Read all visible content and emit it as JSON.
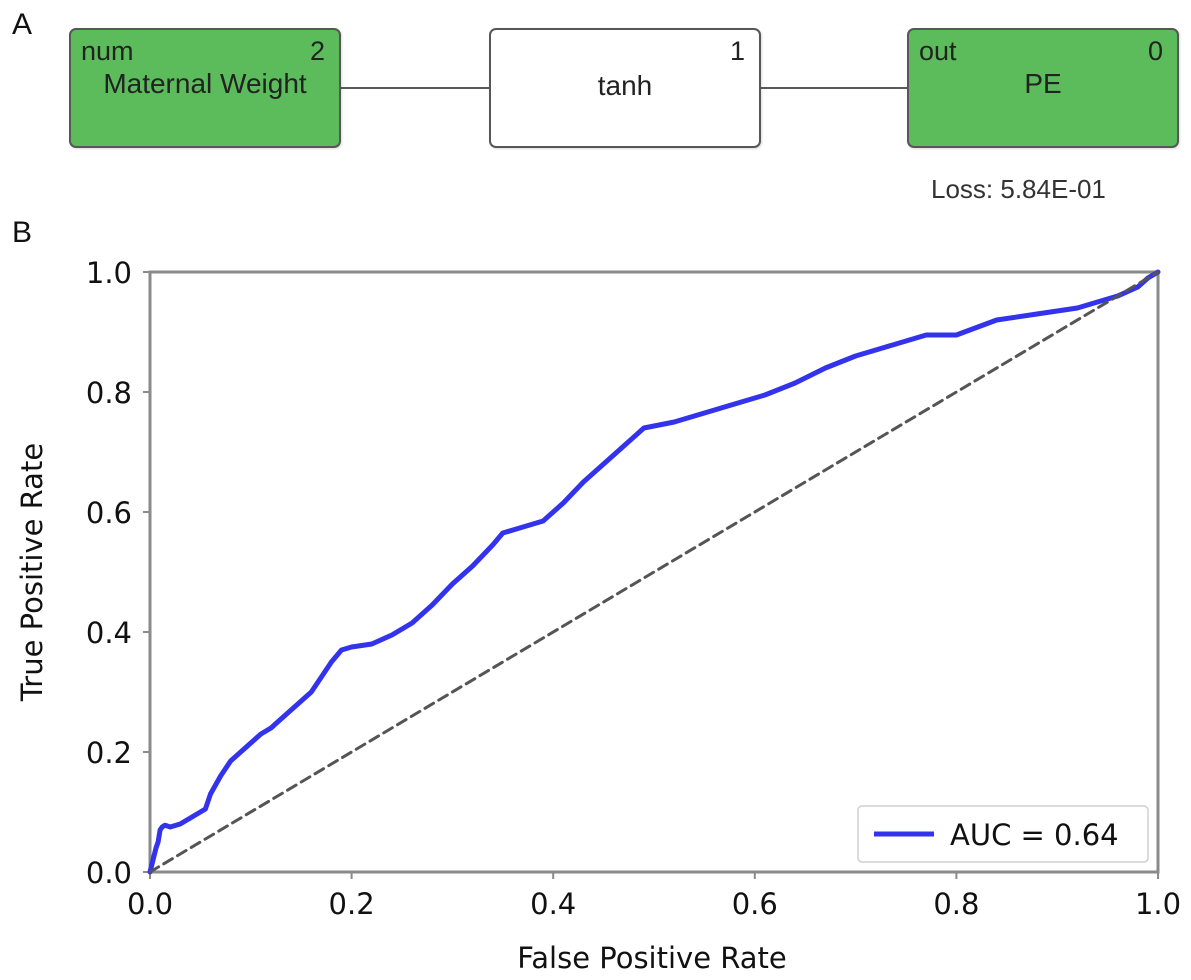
{
  "panels": {
    "a_label": "A",
    "b_label": "B"
  },
  "network": {
    "input_node": {
      "type": "num",
      "index": "2",
      "name": "Maternal Weight",
      "color": "#5cbc5c"
    },
    "hidden_node": {
      "index": "1",
      "name": "tanh"
    },
    "output_node": {
      "type": "out",
      "index": "0",
      "name": "PE",
      "color": "#5cbc5c"
    },
    "loss_text": "Loss: 5.84E-01"
  },
  "chart_data": {
    "type": "line",
    "xlabel": "False Positive Rate",
    "ylabel": "True Positive Rate",
    "xlim": [
      0.0,
      1.0
    ],
    "ylim": [
      0.0,
      1.0
    ],
    "xticks": [
      "0.0",
      "0.2",
      "0.4",
      "0.6",
      "0.8",
      "1.0"
    ],
    "yticks": [
      "0.0",
      "0.2",
      "0.4",
      "0.6",
      "0.8",
      "1.0"
    ],
    "grid": false,
    "legend_position": "bottom-right",
    "series": [
      {
        "name": "AUC = 0.64",
        "color": "#3333ee",
        "x": [
          0.0,
          0.003,
          0.006,
          0.008,
          0.01,
          0.012,
          0.015,
          0.02,
          0.03,
          0.04,
          0.05,
          0.055,
          0.06,
          0.07,
          0.08,
          0.09,
          0.1,
          0.11,
          0.12,
          0.13,
          0.14,
          0.15,
          0.16,
          0.17,
          0.18,
          0.19,
          0.2,
          0.22,
          0.24,
          0.26,
          0.28,
          0.3,
          0.32,
          0.34,
          0.35,
          0.37,
          0.39,
          0.41,
          0.43,
          0.45,
          0.47,
          0.49,
          0.52,
          0.55,
          0.58,
          0.61,
          0.64,
          0.67,
          0.7,
          0.73,
          0.77,
          0.8,
          0.84,
          0.88,
          0.92,
          0.95,
          0.96,
          0.98,
          0.99,
          1.0
        ],
        "y": [
          0.0,
          0.02,
          0.04,
          0.05,
          0.07,
          0.075,
          0.078,
          0.075,
          0.08,
          0.09,
          0.1,
          0.105,
          0.13,
          0.16,
          0.185,
          0.2,
          0.215,
          0.23,
          0.24,
          0.255,
          0.27,
          0.285,
          0.3,
          0.325,
          0.35,
          0.37,
          0.375,
          0.38,
          0.395,
          0.415,
          0.445,
          0.48,
          0.51,
          0.545,
          0.565,
          0.575,
          0.585,
          0.615,
          0.65,
          0.68,
          0.71,
          0.74,
          0.75,
          0.765,
          0.78,
          0.795,
          0.815,
          0.84,
          0.86,
          0.875,
          0.895,
          0.895,
          0.92,
          0.93,
          0.94,
          0.955,
          0.96,
          0.975,
          0.99,
          1.0
        ]
      },
      {
        "name": "",
        "color": "#555555",
        "style": "dashed",
        "x": [
          0.0,
          1.0
        ],
        "y": [
          0.0,
          1.0
        ]
      }
    ]
  }
}
